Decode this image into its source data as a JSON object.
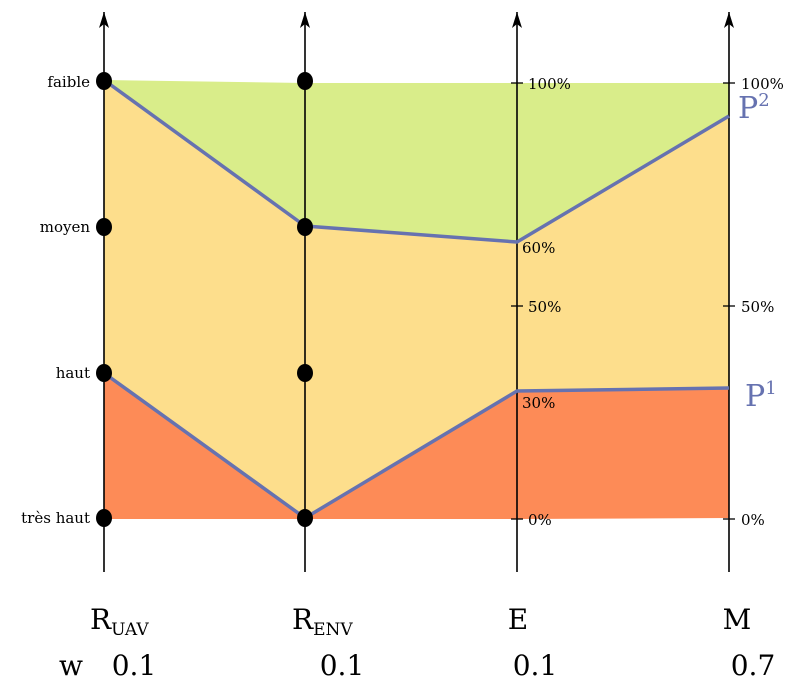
{
  "levels": [
    "faible",
    "moyen",
    "haut",
    "très haut"
  ],
  "axes": [
    {
      "name": "R",
      "sub": "UAV",
      "weight": "0.1"
    },
    {
      "name": "R",
      "sub": "ENV",
      "weight": "0.1"
    },
    {
      "name": "E",
      "sub": "",
      "weight": "0.1"
    },
    {
      "name": "M",
      "sub": "",
      "weight": "0.7"
    }
  ],
  "weight_label": "w",
  "e_ticks": [
    "100%",
    "60%",
    "50%",
    "30%",
    "0%"
  ],
  "m_ticks": [
    "100%",
    "50%",
    "0%"
  ],
  "profiles": [
    {
      "base": "P",
      "sup": "1",
      "values": [
        "haut",
        "très haut",
        "32%",
        "33%"
      ]
    },
    {
      "base": "P",
      "sup": "2",
      "values": [
        "faible",
        "moyen",
        "64%",
        "93%"
      ]
    }
  ],
  "colors": {
    "good_zone": "#d9ed8a",
    "mid_zone": "#fdde8c",
    "bad_zone": "#fd8b57",
    "profile_line": "#6672b0",
    "axis": "#000000"
  }
}
